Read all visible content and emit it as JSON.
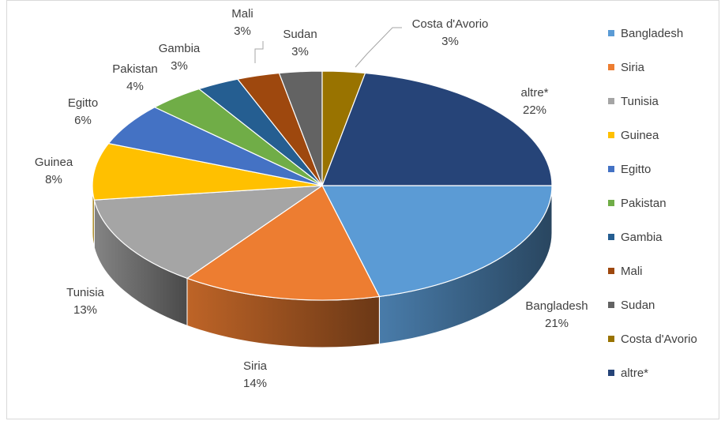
{
  "chart_data": {
    "type": "pie",
    "variant": "3d",
    "title": "",
    "slices": [
      {
        "label": "Bangladesh",
        "value": 21,
        "display": "21%",
        "color": "#5B9BD5"
      },
      {
        "label": "Siria",
        "value": 14,
        "display": "14%",
        "color": "#ED7D31"
      },
      {
        "label": "Tunisia",
        "value": 13,
        "display": "13%",
        "color": "#A5A5A5"
      },
      {
        "label": "Guinea",
        "value": 8,
        "display": "8%",
        "color": "#FFC000"
      },
      {
        "label": "Egitto",
        "value": 6,
        "display": "6%",
        "color": "#4472C4"
      },
      {
        "label": "Pakistan",
        "value": 4,
        "display": "4%",
        "color": "#70AD47"
      },
      {
        "label": "Gambia",
        "value": 3,
        "display": "3%",
        "color": "#255E91"
      },
      {
        "label": "Mali",
        "value": 3,
        "display": "3%",
        "color": "#9E480E"
      },
      {
        "label": "Sudan",
        "value": 3,
        "display": "3%",
        "color": "#636363"
      },
      {
        "label": "Costa d'Avorio",
        "value": 3,
        "display": "3%",
        "color": "#997300"
      },
      {
        "label": "altre*",
        "value": 22,
        "display": "22%",
        "color": "#264478"
      }
    ],
    "legend_position": "right"
  }
}
